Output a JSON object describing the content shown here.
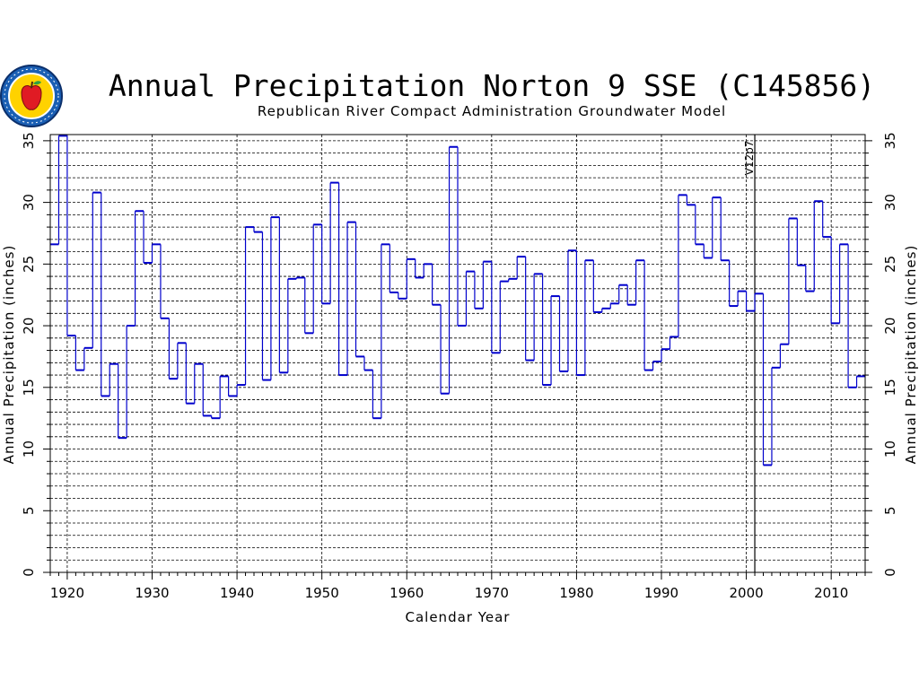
{
  "chart_data": {
    "type": "line",
    "style": "step",
    "title": "Annual Precipitation Norton 9 SSE (C145856)",
    "subtitle": "Republican River Compact Administration Groundwater Model",
    "xlabel": "Calendar Year",
    "ylabel": "Annual Precipitation (inches)",
    "ylabel_right": "Annual Precipitation (inches)",
    "xlim": [
      1918,
      2014
    ],
    "ylim": [
      0,
      35.5
    ],
    "x_ticks": [
      1920,
      1930,
      1940,
      1950,
      1960,
      1970,
      1980,
      1990,
      2000,
      2010
    ],
    "y_ticks": [
      0,
      5,
      10,
      15,
      20,
      25,
      30,
      35
    ],
    "grid": true,
    "series_color": "#0000cc",
    "marker_line": {
      "x": 2001,
      "label": "V12p7"
    },
    "x": [
      1918,
      1919,
      1920,
      1921,
      1922,
      1923,
      1924,
      1925,
      1926,
      1927,
      1928,
      1929,
      1930,
      1931,
      1932,
      1933,
      1934,
      1935,
      1936,
      1937,
      1938,
      1939,
      1940,
      1941,
      1942,
      1943,
      1944,
      1945,
      1946,
      1947,
      1948,
      1949,
      1950,
      1951,
      1952,
      1953,
      1954,
      1955,
      1956,
      1957,
      1958,
      1959,
      1960,
      1961,
      1962,
      1963,
      1964,
      1965,
      1966,
      1967,
      1968,
      1969,
      1970,
      1971,
      1972,
      1973,
      1974,
      1975,
      1976,
      1977,
      1978,
      1979,
      1980,
      1981,
      1982,
      1983,
      1984,
      1985,
      1986,
      1987,
      1988,
      1989,
      1990,
      1991,
      1992,
      1993,
      1994,
      1995,
      1996,
      1997,
      1998,
      1999,
      2000,
      2001,
      2002,
      2003,
      2004,
      2005,
      2006,
      2007,
      2008,
      2009,
      2010,
      2011,
      2012,
      2013
    ],
    "values": [
      26.6,
      35.4,
      19.2,
      16.4,
      18.2,
      30.8,
      14.3,
      16.9,
      10.9,
      20.0,
      29.3,
      25.1,
      26.6,
      20.6,
      15.7,
      18.6,
      13.7,
      16.9,
      12.7,
      12.5,
      15.9,
      14.3,
      15.2,
      28.0,
      27.6,
      15.6,
      28.8,
      16.2,
      23.8,
      23.9,
      19.4,
      28.2,
      21.8,
      31.6,
      16.0,
      28.4,
      17.5,
      16.4,
      12.5,
      26.6,
      22.7,
      22.2,
      25.4,
      23.9,
      25.0,
      21.7,
      14.5,
      34.5,
      20.0,
      24.4,
      21.4,
      25.2,
      17.8,
      23.6,
      23.8,
      25.6,
      17.2,
      24.2,
      15.2,
      22.4,
      16.3,
      26.1,
      16.0,
      25.3,
      21.1,
      21.4,
      21.8,
      23.3,
      21.7,
      25.3,
      16.4,
      17.1,
      18.1,
      19.1,
      30.6,
      29.8,
      26.6,
      25.5,
      30.4,
      25.3,
      21.6,
      22.8,
      21.2,
      22.6,
      8.7,
      16.6,
      18.5,
      28.7,
      24.9,
      22.8,
      30.1,
      27.2,
      20.2,
      26.6,
      15.0,
      15.9
    ]
  },
  "logo": {
    "name": "rrca-apple-seal"
  }
}
